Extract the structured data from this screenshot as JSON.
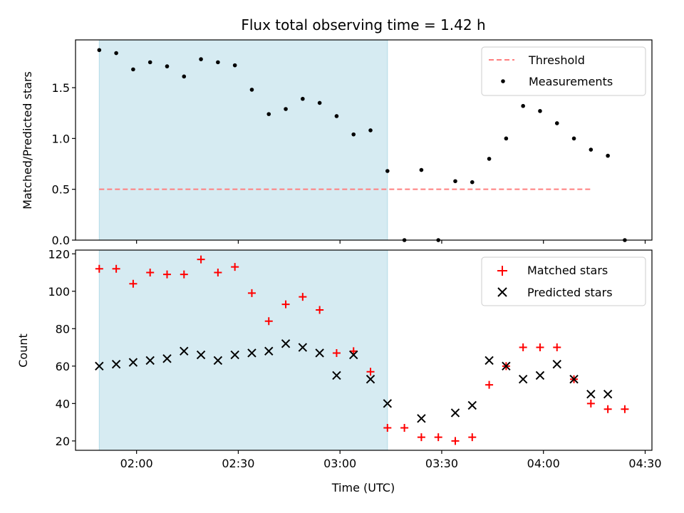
{
  "chart_data": {
    "type": "scatter",
    "title": "Flux total observing time = 1.42 h",
    "xlabel": "Time (UTC)",
    "x_ticks": [
      "02:00",
      "02:30",
      "03:00",
      "03:30",
      "04:00",
      "04:30"
    ],
    "x_tick_minutes": [
      120,
      150,
      180,
      210,
      240,
      270
    ],
    "xlim": [
      102,
      272
    ],
    "shaded_interval": {
      "x_start": 109,
      "x_end": 194,
      "color": "#add8e6"
    },
    "times": [
      "01:49",
      "01:54",
      "01:59",
      "02:04",
      "02:09",
      "02:14",
      "02:19",
      "02:24",
      "02:29",
      "02:34",
      "02:39",
      "02:44",
      "02:49",
      "02:54",
      "02:59",
      "03:04",
      "03:09",
      "03:14",
      "03:19",
      "03:24",
      "03:29",
      "03:34",
      "03:39",
      "03:44",
      "03:49",
      "03:54",
      "03:59",
      "04:04",
      "04:09",
      "04:14",
      "04:19",
      "04:24"
    ],
    "panels": [
      {
        "ylabel": "Matched/Predicted stars",
        "ylim": [
          0,
          1.97
        ],
        "y_ticks": [
          0.0,
          0.5,
          1.0,
          1.5
        ],
        "y_tick_labels": [
          "0.0",
          "0.5",
          "1.0",
          "1.5"
        ],
        "legend_position": "top-right",
        "threshold": {
          "name": "Threshold",
          "value": 0.5,
          "x": [
            109,
            254
          ],
          "color": "#ff7f7f"
        },
        "series": [
          {
            "name": "Measurements",
            "marker": "dot",
            "color": "#000000",
            "x": [
              109,
              114,
              119,
              124,
              129,
              134,
              139,
              144,
              149,
              154,
              159,
              164,
              169,
              174,
              179,
              184,
              189,
              194,
              199,
              204,
              209,
              214,
              219,
              224,
              229,
              234,
              239,
              244,
              249,
              254,
              259,
              264
            ],
            "values": [
              1.87,
              1.84,
              1.68,
              1.75,
              1.71,
              1.61,
              1.78,
              1.75,
              1.72,
              1.48,
              1.24,
              1.29,
              1.39,
              1.35,
              1.22,
              1.04,
              1.08,
              0.68,
              0.0,
              0.69,
              0.0,
              0.58,
              0.57,
              0.8,
              1.0,
              1.32,
              1.27,
              1.15,
              1.0,
              0.89,
              0.83,
              0.0
            ]
          }
        ]
      },
      {
        "ylabel": "Count",
        "ylim": [
          15,
          122
        ],
        "y_ticks": [
          20,
          40,
          60,
          80,
          100,
          120
        ],
        "y_tick_labels": [
          "20",
          "40",
          "60",
          "80",
          "100",
          "120"
        ],
        "legend_position": "top-right",
        "series": [
          {
            "name": "Matched stars",
            "marker": "plus",
            "color": "#ff0000",
            "x": [
              109,
              114,
              119,
              124,
              129,
              134,
              139,
              144,
              149,
              154,
              159,
              164,
              169,
              174,
              179,
              184,
              189,
              194,
              199,
              204,
              209,
              214,
              219,
              224,
              229,
              234,
              239,
              244,
              249,
              254,
              259,
              264
            ],
            "values": [
              112,
              112,
              104,
              110,
              109,
              109,
              117,
              110,
              113,
              99,
              84,
              93,
              97,
              90,
              67,
              68,
              57,
              27,
              27,
              22,
              22,
              20,
              22,
              50,
              60,
              70,
              70,
              70,
              53,
              40,
              37,
              37
            ]
          },
          {
            "name": "Predicted stars",
            "marker": "x",
            "color": "#000000",
            "x": [
              109,
              114,
              119,
              124,
              129,
              134,
              139,
              144,
              149,
              154,
              159,
              164,
              169,
              174,
              179,
              184,
              189,
              194,
              204,
              214,
              219,
              224,
              229,
              234,
              239,
              244,
              249,
              254,
              259
            ],
            "values": [
              60,
              61,
              62,
              63,
              64,
              68,
              66,
              63,
              66,
              67,
              68,
              72,
              70,
              67,
              55,
              66,
              53,
              40,
              32,
              35,
              39,
              63,
              60,
              53,
              55,
              61,
              53,
              45,
              45
            ]
          }
        ]
      }
    ]
  }
}
